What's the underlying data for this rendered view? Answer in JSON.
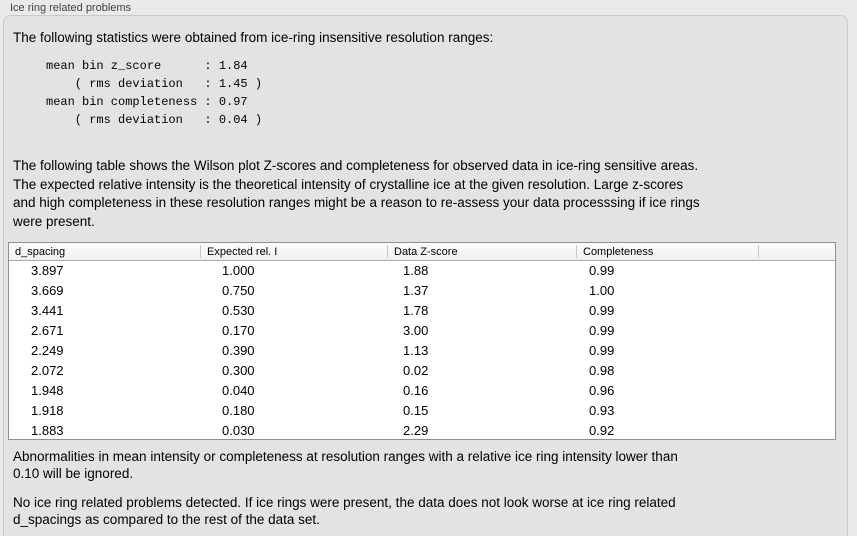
{
  "panel": {
    "title": "Ice ring related problems"
  },
  "intro": {
    "text": "The following statistics were obtained from ice-ring insensitive resolution ranges:"
  },
  "stats": {
    "text": "mean bin z_score      : 1.84\n    ( rms deviation   : 1.45 )\nmean bin completeness : 0.97\n    ( rms deviation   : 0.04 )",
    "mean_bin_z_score": "1.84",
    "z_score_rms_deviation": "1.45",
    "mean_bin_completeness": "0.97",
    "completeness_rms_deviation": "0.04"
  },
  "description": {
    "text": "The following table shows the Wilson plot Z-scores and completeness for observed data in ice-ring sensitive areas.\nThe expected relative intensity is the theoretical intensity of crystalline ice at the given resolution. Large z-scores\nand high completeness in these resolution ranges might be a reason to re-assess your data processsing if ice rings\nwere present."
  },
  "table": {
    "columns": [
      "d_spacing",
      "Expected rel. I",
      "Data Z-score",
      "Completeness"
    ],
    "rows": [
      [
        "3.897",
        "1.000",
        "1.88",
        "0.99"
      ],
      [
        "3.669",
        "0.750",
        "1.37",
        "1.00"
      ],
      [
        "3.441",
        "0.530",
        "1.78",
        "0.99"
      ],
      [
        "2.671",
        "0.170",
        "3.00",
        "0.99"
      ],
      [
        "2.249",
        "0.390",
        "1.13",
        "0.99"
      ],
      [
        "2.072",
        "0.300",
        "0.02",
        "0.98"
      ],
      [
        "1.948",
        "0.040",
        "0.16",
        "0.96"
      ],
      [
        "1.918",
        "0.180",
        "0.15",
        "0.93"
      ],
      [
        "1.883",
        "0.030",
        "2.29",
        "0.92"
      ]
    ]
  },
  "notes": {
    "ignore": "Abnormalities in mean intensity or completeness at resolution ranges with a relative ice ring intensity lower than\n0.10 will be ignored.",
    "conclusion": "No ice ring related problems detected. If ice rings were present, the data does not look worse at ice ring related\nd_spacings as compared to the rest of the data set."
  }
}
